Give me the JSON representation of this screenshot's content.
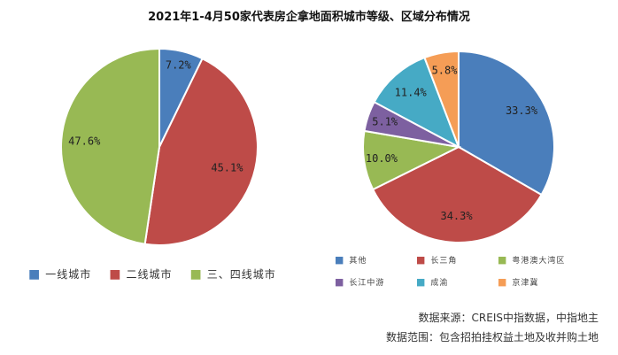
{
  "title": "2021年1-4月50家代表房企拿地面积城市等级、区域分布情况",
  "chart_data": [
    {
      "type": "pie",
      "categories": [
        "一线城市",
        "二线城市",
        "三、四线城市"
      ],
      "values": [
        7.2,
        45.1,
        47.6
      ],
      "labels": [
        "7.2%",
        "45.1%",
        "47.6%"
      ],
      "colors": [
        "#4a7ebb",
        "#be4b48",
        "#98b954"
      ],
      "legend_position": "bottom"
    },
    {
      "type": "pie",
      "categories": [
        "其他",
        "长三角",
        "粤港澳大湾区",
        "长江中游",
        "成渝",
        "京津冀"
      ],
      "values": [
        33.3,
        34.3,
        10.0,
        5.1,
        11.4,
        5.8
      ],
      "labels": [
        "33.3%",
        "34.3%",
        "10.0%",
        "5.1%",
        "11.4%",
        "5.8%"
      ],
      "colors": [
        "#4a7ebb",
        "#be4b48",
        "#98b954",
        "#7d60a0",
        "#46aac5",
        "#f59d56"
      ],
      "legend_position": "bottom"
    }
  ],
  "source": {
    "line1": "数据来源：CREIS中指数据，中指地主",
    "line2": "数据范围：包含招拍挂权益土地及收并购土地"
  }
}
